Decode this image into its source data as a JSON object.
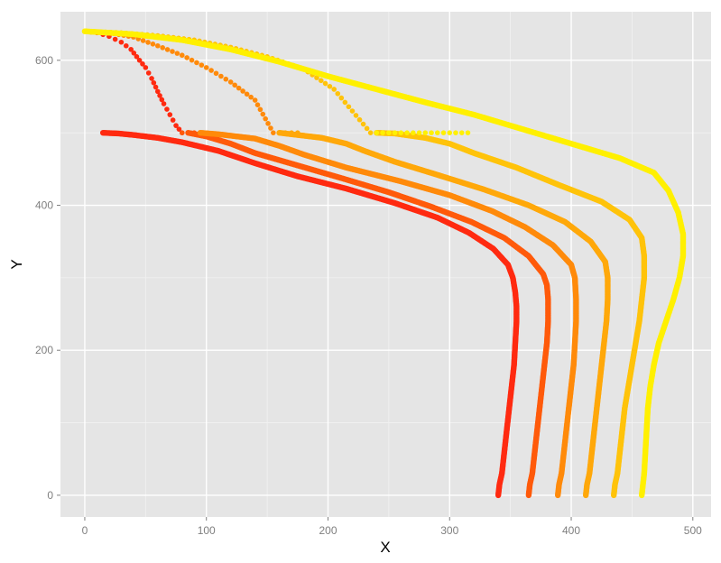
{
  "chart_data": {
    "type": "scatter",
    "title": "",
    "xlabel": "X",
    "ylabel": "Y",
    "xlim": [
      -20,
      515
    ],
    "ylim": [
      -30,
      667
    ],
    "x_ticks": [
      0,
      100,
      200,
      300,
      400,
      500
    ],
    "y_ticks": [
      0,
      200,
      400,
      600
    ],
    "grid": true,
    "legend": "none",
    "panel_background": "#E5E5E5",
    "grid_color": "#FFFFFF",
    "series": [
      {
        "color": "#FF2A10",
        "descent": [
          [
            340,
            0
          ],
          [
            341,
            15
          ],
          [
            343,
            30
          ],
          [
            345,
            60
          ],
          [
            347,
            90
          ],
          [
            349,
            120
          ],
          [
            351,
            150
          ],
          [
            353,
            180
          ],
          [
            354,
            210
          ],
          [
            355,
            240
          ],
          [
            355,
            260
          ],
          [
            354,
            280
          ],
          [
            352,
            300
          ],
          [
            348,
            318
          ],
          [
            336,
            340
          ],
          [
            316,
            362
          ],
          [
            290,
            383
          ],
          [
            255,
            403
          ],
          [
            215,
            423
          ],
          [
            175,
            440
          ],
          [
            140,
            458
          ],
          [
            110,
            475
          ],
          [
            80,
            487
          ],
          [
            60,
            493
          ],
          [
            40,
            497
          ],
          [
            28,
            499
          ],
          [
            15,
            500
          ]
        ],
        "tail": [
          [
            0,
            640
          ],
          [
            10,
            638
          ],
          [
            20,
            633
          ],
          [
            30,
            625
          ],
          [
            38,
            615
          ],
          [
            45,
            600
          ],
          [
            50,
            590
          ],
          [
            55,
            575
          ],
          [
            60,
            557
          ],
          [
            65,
            540
          ],
          [
            70,
            525
          ],
          [
            75,
            510
          ],
          [
            80,
            500
          ]
        ]
      },
      {
        "color": "#FF5A0A",
        "descent": [
          [
            365,
            0
          ],
          [
            366,
            15
          ],
          [
            368,
            30
          ],
          [
            370,
            60
          ],
          [
            372,
            90
          ],
          [
            374,
            120
          ],
          [
            376,
            150
          ],
          [
            378,
            180
          ],
          [
            380,
            210
          ],
          [
            381,
            240
          ],
          [
            381,
            270
          ],
          [
            380,
            290
          ],
          [
            377,
            305
          ],
          [
            365,
            330
          ],
          [
            345,
            355
          ],
          [
            318,
            377
          ],
          [
            285,
            398
          ],
          [
            250,
            418
          ],
          [
            210,
            438
          ],
          [
            175,
            455
          ],
          [
            140,
            472
          ],
          [
            120,
            485
          ],
          [
            100,
            495
          ],
          [
            85,
            500
          ]
        ],
        "tail": [
          [
            80,
            500
          ],
          [
            95,
            500
          ]
        ]
      },
      {
        "color": "#FF8A0A",
        "descent": [
          [
            389,
            0
          ],
          [
            390,
            15
          ],
          [
            392,
            30
          ],
          [
            394,
            60
          ],
          [
            396,
            90
          ],
          [
            398,
            120
          ],
          [
            400,
            150
          ],
          [
            402,
            180
          ],
          [
            403,
            210
          ],
          [
            404,
            240
          ],
          [
            404,
            270
          ],
          [
            403,
            300
          ],
          [
            400,
            318
          ],
          [
            385,
            345
          ],
          [
            362,
            370
          ],
          [
            335,
            392
          ],
          [
            300,
            414
          ],
          [
            260,
            433
          ],
          [
            215,
            452
          ],
          [
            180,
            470
          ],
          [
            160,
            482
          ],
          [
            140,
            492
          ],
          [
            110,
            498
          ],
          [
            95,
            500
          ]
        ],
        "tail": [
          [
            0,
            640
          ],
          [
            20,
            638
          ],
          [
            40,
            632
          ],
          [
            60,
            620
          ],
          [
            80,
            607
          ],
          [
            100,
            590
          ],
          [
            120,
            570
          ],
          [
            140,
            545
          ],
          [
            155,
            500
          ]
        ]
      },
      {
        "color": "#FFA80A",
        "descent": [
          [
            412,
            0
          ],
          [
            413,
            15
          ],
          [
            415,
            30
          ],
          [
            417,
            60
          ],
          [
            419,
            90
          ],
          [
            421,
            120
          ],
          [
            423,
            150
          ],
          [
            425,
            180
          ],
          [
            427,
            210
          ],
          [
            429,
            240
          ],
          [
            430,
            270
          ],
          [
            430,
            300
          ],
          [
            428,
            322
          ],
          [
            416,
            350
          ],
          [
            395,
            377
          ],
          [
            365,
            400
          ],
          [
            328,
            422
          ],
          [
            290,
            442
          ],
          [
            255,
            460
          ],
          [
            230,
            475
          ],
          [
            215,
            485
          ],
          [
            195,
            493
          ],
          [
            170,
            498
          ],
          [
            160,
            500
          ]
        ],
        "tail": [
          [
            160,
            500
          ],
          [
            175,
            500
          ]
        ]
      },
      {
        "color": "#FFC30A",
        "descent": [
          [
            435,
            0
          ],
          [
            436,
            15
          ],
          [
            438,
            30
          ],
          [
            440,
            60
          ],
          [
            442,
            90
          ],
          [
            444,
            120
          ],
          [
            447,
            150
          ],
          [
            450,
            180
          ],
          [
            453,
            210
          ],
          [
            456,
            240
          ],
          [
            458,
            270
          ],
          [
            460,
            300
          ],
          [
            460,
            330
          ],
          [
            458,
            355
          ],
          [
            448,
            380
          ],
          [
            425,
            405
          ],
          [
            390,
            428
          ],
          [
            355,
            452
          ],
          [
            320,
            472
          ],
          [
            300,
            485
          ],
          [
            280,
            493
          ],
          [
            255,
            499
          ],
          [
            240,
            500
          ]
        ],
        "tail": [
          [
            0,
            640
          ],
          [
            30,
            638
          ],
          [
            60,
            634
          ],
          [
            90,
            628
          ],
          [
            120,
            618
          ],
          [
            150,
            605
          ],
          [
            180,
            588
          ],
          [
            205,
            560
          ],
          [
            220,
            530
          ],
          [
            235,
            500
          ]
        ]
      },
      {
        "color": "#FFF000",
        "descent": [
          [
            458,
            0
          ],
          [
            459,
            15
          ],
          [
            460,
            30
          ],
          [
            461,
            60
          ],
          [
            462,
            90
          ],
          [
            463,
            120
          ],
          [
            465,
            150
          ],
          [
            468,
            180
          ],
          [
            472,
            210
          ],
          [
            478,
            240
          ],
          [
            484,
            270
          ],
          [
            489,
            300
          ],
          [
            492,
            330
          ],
          [
            492,
            360
          ],
          [
            488,
            390
          ],
          [
            480,
            420
          ],
          [
            468,
            445
          ],
          [
            440,
            465
          ],
          [
            400,
            485
          ],
          [
            360,
            505
          ],
          [
            320,
            525
          ],
          [
            280,
            542
          ],
          [
            240,
            560
          ],
          [
            200,
            578
          ],
          [
            160,
            598
          ],
          [
            120,
            615
          ],
          [
            80,
            628
          ],
          [
            40,
            636
          ],
          [
            0,
            640
          ]
        ],
        "tail": [
          [
            240,
            500
          ],
          [
            260,
            500
          ],
          [
            280,
            500
          ],
          [
            300,
            500
          ],
          [
            315,
            500
          ]
        ]
      }
    ]
  }
}
